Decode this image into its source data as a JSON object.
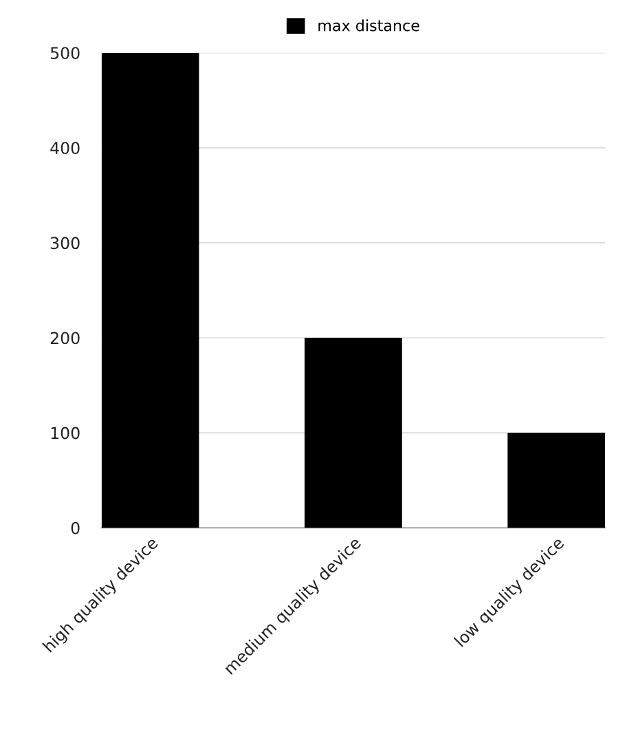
{
  "chart_data": {
    "type": "bar",
    "categories": [
      "high quality device",
      "medium quality device",
      "low quality device"
    ],
    "series": [
      {
        "name": "max distance",
        "color": "#000000",
        "values": [
          500,
          200,
          100
        ]
      }
    ],
    "ylim": [
      0,
      500
    ],
    "yticks": [
      0,
      100,
      200,
      300,
      400,
      500
    ],
    "grid": "y",
    "legend": "top"
  }
}
